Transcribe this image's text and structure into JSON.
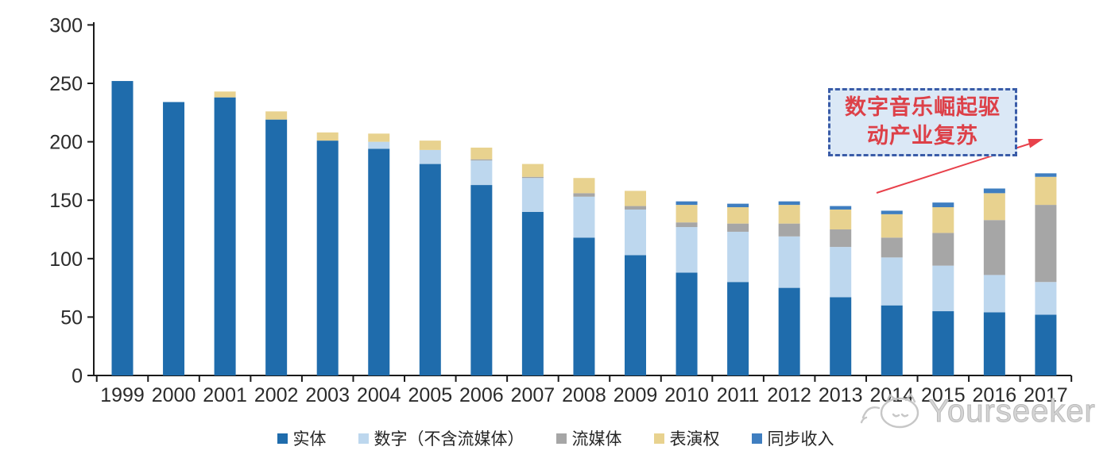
{
  "chart_data": {
    "type": "bar",
    "stacked": true,
    "title": "",
    "categories": [
      "1999",
      "2000",
      "2001",
      "2002",
      "2003",
      "2004",
      "2005",
      "2006",
      "2007",
      "2008",
      "2009",
      "2010",
      "2011",
      "2012",
      "2013",
      "2014",
      "2015",
      "2016",
      "2017"
    ],
    "series": [
      {
        "name": "实体",
        "color": "#1f6cac",
        "values": [
          252,
          234,
          238,
          219,
          201,
          194,
          181,
          163,
          140,
          118,
          103,
          88,
          80,
          75,
          67,
          60,
          55,
          54,
          52
        ]
      },
      {
        "name": "数字（不含流媒体）",
        "color": "#bdd7ee",
        "values": [
          0,
          0,
          0,
          0,
          0,
          6,
          12,
          21,
          29,
          35,
          39,
          39,
          43,
          44,
          43,
          41,
          39,
          32,
          28
        ]
      },
      {
        "name": "流媒体",
        "color": "#a6a6a6",
        "values": [
          0,
          0,
          0,
          0,
          0,
          0,
          0,
          1,
          1,
          3,
          3,
          4,
          7,
          11,
          15,
          17,
          28,
          47,
          66
        ]
      },
      {
        "name": "表演权",
        "color": "#e8d28f",
        "values": [
          0,
          0,
          5,
          7,
          7,
          7,
          8,
          10,
          11,
          13,
          13,
          15,
          14,
          16,
          17,
          20,
          22,
          23,
          24
        ]
      },
      {
        "name": "同步收入",
        "color": "#3f7ec0",
        "values": [
          0,
          0,
          0,
          0,
          0,
          0,
          0,
          0,
          0,
          0,
          0,
          3,
          3,
          3,
          3,
          3,
          4,
          4,
          3
        ]
      }
    ],
    "xlabel": "",
    "ylabel": "",
    "y_axis": {
      "ticks": [
        0,
        50,
        100,
        150,
        200,
        250,
        300
      ],
      "min": 0,
      "max": 300
    },
    "grid": false,
    "legend_position": "bottom",
    "axis_color": "#1a1a1a",
    "label_color": "#2b2b2b"
  },
  "annotation": {
    "line1": "数字音乐崛起驱",
    "line2": "动产业复苏",
    "border_color": "#3a5ca8",
    "bg_color": "#dbe8f6",
    "text_color": "#dd4048",
    "arrow_color": "#e8414b"
  },
  "watermark": {
    "text": "Yourseeker",
    "color": "#c9c9c9"
  }
}
